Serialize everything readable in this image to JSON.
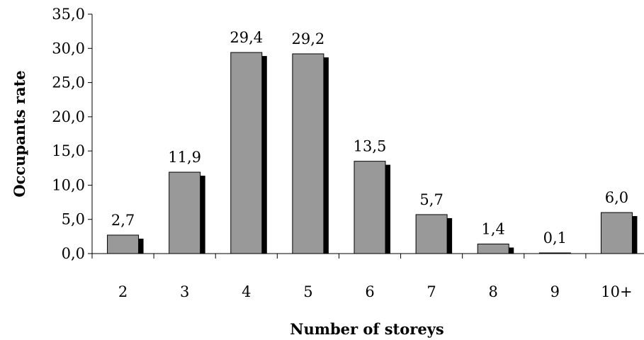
{
  "chart_data": {
    "type": "bar",
    "title": "",
    "xlabel": "Number of storeys",
    "ylabel": "Occupants rate",
    "categories": [
      "2",
      "3",
      "4",
      "5",
      "6",
      "7",
      "8",
      "9",
      "10+"
    ],
    "values": [
      2.7,
      11.9,
      29.4,
      29.2,
      13.5,
      5.7,
      1.4,
      0.1,
      6.0
    ],
    "data_labels": [
      "2,7",
      "11,9",
      "29,4",
      "29,2",
      "13,5",
      "5,7",
      "1,4",
      "0,1",
      "6,0"
    ],
    "ylim": [
      0,
      35
    ],
    "yticks": [
      0,
      5,
      10,
      15,
      20,
      25,
      30,
      35
    ],
    "ytick_labels": [
      "0,0",
      "5,0",
      "10,0",
      "15,0",
      "20,0",
      "25,0",
      "30,0",
      "35,0"
    ],
    "grid": false,
    "legend": "none",
    "colors": {
      "bar": "#999999",
      "bar_stroke": "#000000",
      "shadow": "#000000",
      "axis": "#000000"
    }
  }
}
